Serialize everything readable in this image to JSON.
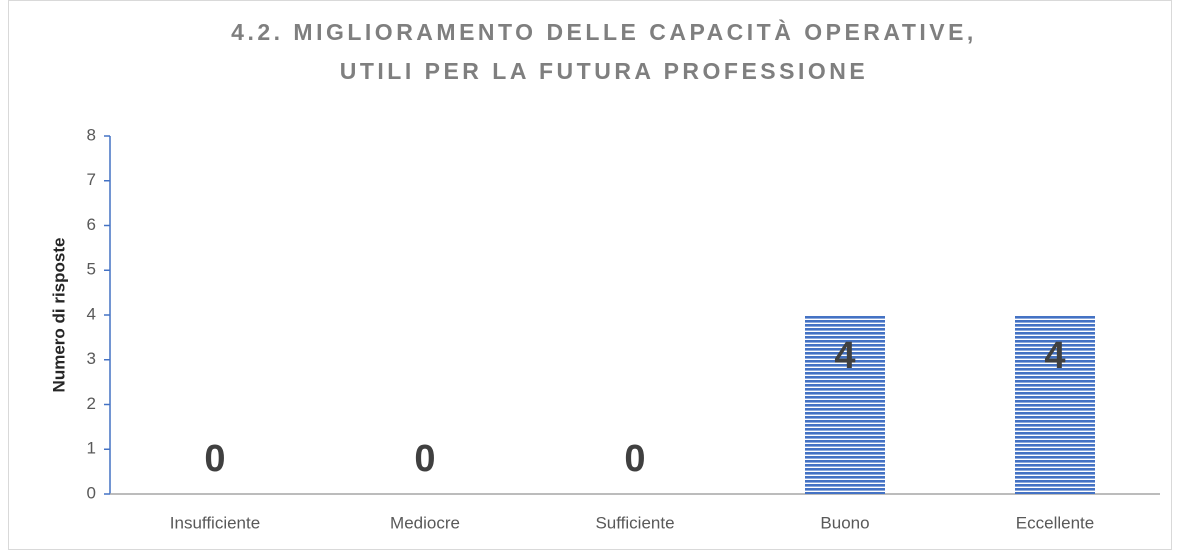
{
  "chart_data": {
    "type": "bar",
    "title": [
      "4.2. MIGLIORAMENTO DELLE CAPACITÀ OPERATIVE,",
      "UTILI PER LA FUTURA PROFESSIONE"
    ],
    "y_axis_label": "Numero di risposte",
    "categories": [
      "Insufficiente",
      "Mediocre",
      "Sufficiente",
      "Buono",
      "Eccellente"
    ],
    "values": [
      0,
      0,
      0,
      4,
      4
    ],
    "color": "#4472c4",
    "ylim": [
      0,
      8
    ],
    "yticks": [
      0,
      1,
      2,
      3,
      4,
      5,
      6,
      7,
      8
    ],
    "grid": false
  }
}
